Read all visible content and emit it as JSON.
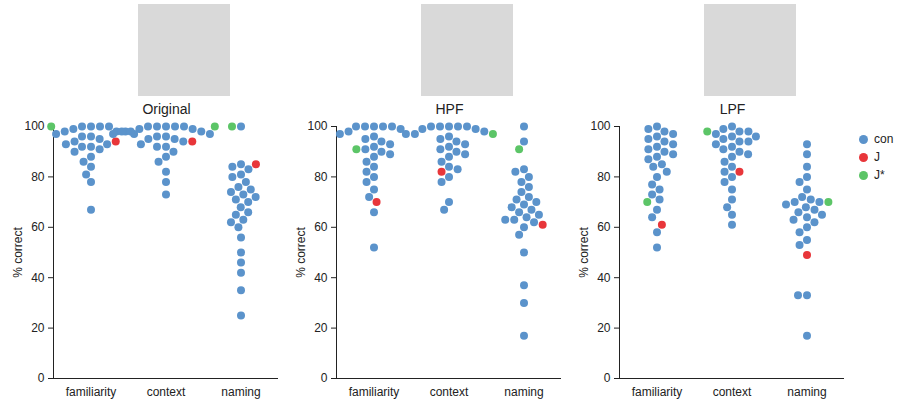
{
  "chart_data": [
    {
      "type": "scatter",
      "title": "Original",
      "categories": [
        "familiarity",
        "context",
        "naming"
      ],
      "y_label": "% correct",
      "ylim": [
        0,
        100
      ],
      "yticks": [
        0,
        20,
        40,
        60,
        80,
        100
      ],
      "series": [
        {
          "name": "con",
          "color": "#5b93cb",
          "values": [
            [
              100,
              100,
              100,
              100,
              99,
              98,
              98,
              98,
              97,
              97,
              96,
              96,
              95,
              94,
              93,
              93,
              92,
              92,
              91,
              90,
              88,
              86,
              84,
              81,
              78,
              67
            ],
            [
              100,
              100,
              100,
              100,
              100,
              99,
              99,
              98,
              98,
              98,
              97,
              97,
              96,
              96,
              95,
              95,
              94,
              93,
              92,
              92,
              90,
              88,
              86,
              82,
              78,
              73
            ],
            [
              100,
              85,
              84,
              83,
              81,
              80,
              78,
              76,
              75,
              74,
              73,
              72,
              71,
              70,
              68,
              66,
              65,
              63,
              62,
              60,
              56,
              50,
              46,
              42,
              35,
              25
            ]
          ]
        },
        {
          "name": "J",
          "color": "#e8363a",
          "values": [
            [
              94
            ],
            [
              94
            ],
            [
              85
            ]
          ]
        },
        {
          "name": "J*",
          "color": "#5cc567",
          "values": [
            [
              100
            ],
            [
              100
            ],
            [
              100
            ]
          ]
        }
      ]
    },
    {
      "type": "scatter",
      "title": "HPF",
      "categories": [
        "familiarity",
        "context",
        "naming"
      ],
      "y_label": "% correct",
      "ylim": [
        0,
        100
      ],
      "yticks": [
        0,
        20,
        40,
        60,
        80,
        100
      ],
      "series": [
        {
          "name": "con",
          "color": "#5b93cb",
          "values": [
            [
              100,
              100,
              100,
              100,
              100,
              99,
              98,
              97,
              96,
              95,
              94,
              93,
              92,
              91,
              90,
              89,
              88,
              86,
              84,
              82,
              80,
              78,
              75,
              72,
              66,
              52
            ],
            [
              100,
              100,
              100,
              100,
              100,
              99,
              99,
              98,
              97,
              97,
              96,
              95,
              94,
              93,
              92,
              91,
              90,
              89,
              88,
              86,
              84,
              83,
              80,
              78,
              70,
              67
            ],
            [
              100,
              94,
              83,
              82,
              80,
              78,
              76,
              74,
              72,
              71,
              70,
              69,
              68,
              67,
              66,
              65,
              64,
              63,
              63,
              62,
              60,
              57,
              50,
              37,
              30,
              17
            ]
          ]
        },
        {
          "name": "J",
          "color": "#e8363a",
          "values": [
            [
              70
            ],
            [
              82
            ],
            [
              61
            ]
          ]
        },
        {
          "name": "J*",
          "color": "#5cc567",
          "values": [
            [
              91
            ],
            [
              97
            ],
            [
              91
            ]
          ]
        }
      ]
    },
    {
      "type": "scatter",
      "title": "LPF",
      "categories": [
        "familiarity",
        "context",
        "naming"
      ],
      "y_label": "% correct",
      "ylim": [
        0,
        100
      ],
      "yticks": [
        0,
        20,
        40,
        60,
        80,
        100
      ],
      "legend": "right",
      "series": [
        {
          "name": "con",
          "color": "#5b93cb",
          "values": [
            [
              100,
              99,
              98,
              97,
              96,
              95,
              94,
              93,
              92,
              91,
              90,
              89,
              88,
              87,
              85,
              84,
              82,
              80,
              77,
              75,
              73,
              71,
              67,
              64,
              58,
              52
            ],
            [
              100,
              99,
              98,
              98,
              97,
              96,
              96,
              95,
              94,
              94,
              93,
              92,
              91,
              90,
              89,
              88,
              86,
              84,
              82,
              80,
              78,
              75,
              71,
              68,
              65,
              61
            ],
            [
              93,
              89,
              84,
              80,
              78,
              75,
              72,
              71,
              70,
              70,
              69,
              68,
              67,
              66,
              65,
              64,
              63,
              62,
              60,
              58,
              55,
              53,
              33,
              33,
              17
            ]
          ]
        },
        {
          "name": "J",
          "color": "#e8363a",
          "values": [
            [
              61
            ],
            [
              82
            ],
            [
              49
            ]
          ]
        },
        {
          "name": "J*",
          "color": "#5cc567",
          "values": [
            [
              70
            ],
            [
              98
            ],
            [
              70
            ]
          ]
        }
      ]
    }
  ]
}
